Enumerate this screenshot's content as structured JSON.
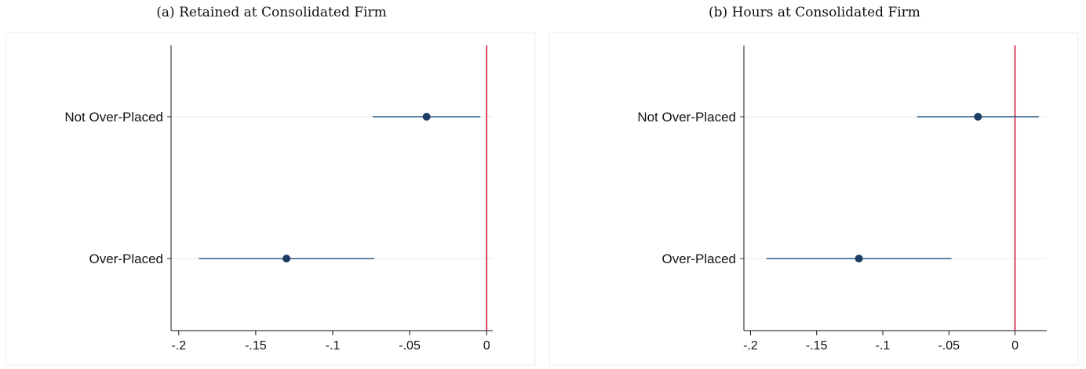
{
  "chart_data": [
    {
      "type": "scatter",
      "title": "(a) Retained at Consolidated Firm",
      "categories": [
        "Not Over-Placed",
        "Over-Placed"
      ],
      "points": [
        {
          "category": "Not Over-Placed",
          "estimate": -0.039,
          "ci_low": -0.074,
          "ci_high": -0.004
        },
        {
          "category": "Over-Placed",
          "estimate": -0.13,
          "ci_low": -0.187,
          "ci_high": -0.073
        }
      ],
      "xlim": [
        -0.205,
        0.004
      ],
      "xticks": [
        -0.2,
        -0.15,
        -0.1,
        -0.05,
        0
      ],
      "xtick_labels": [
        "-.2",
        "-.15",
        "-.1",
        "-.05",
        "0"
      ],
      "reference_line_x": 0,
      "colors": {
        "marker": "#1b3d63",
        "ci": "#2c5a80",
        "reference": "#c8102e"
      }
    },
    {
      "type": "scatter",
      "title": "(b) Hours at Consolidated Firm",
      "categories": [
        "Not Over-Placed",
        "Over-Placed"
      ],
      "points": [
        {
          "category": "Not Over-Placed",
          "estimate": -0.028,
          "ci_low": -0.074,
          "ci_high": 0.018
        },
        {
          "category": "Over-Placed",
          "estimate": -0.118,
          "ci_low": -0.188,
          "ci_high": -0.048
        }
      ],
      "xlim": [
        -0.205,
        0.024
      ],
      "xticks": [
        -0.2,
        -0.15,
        -0.1,
        -0.05,
        0
      ],
      "xtick_labels": [
        "-.2",
        "-.15",
        "-.1",
        "-.05",
        "0"
      ],
      "reference_line_x": 0,
      "colors": {
        "marker": "#1b3d63",
        "ci": "#2c5a80",
        "reference": "#c8102e"
      }
    }
  ]
}
